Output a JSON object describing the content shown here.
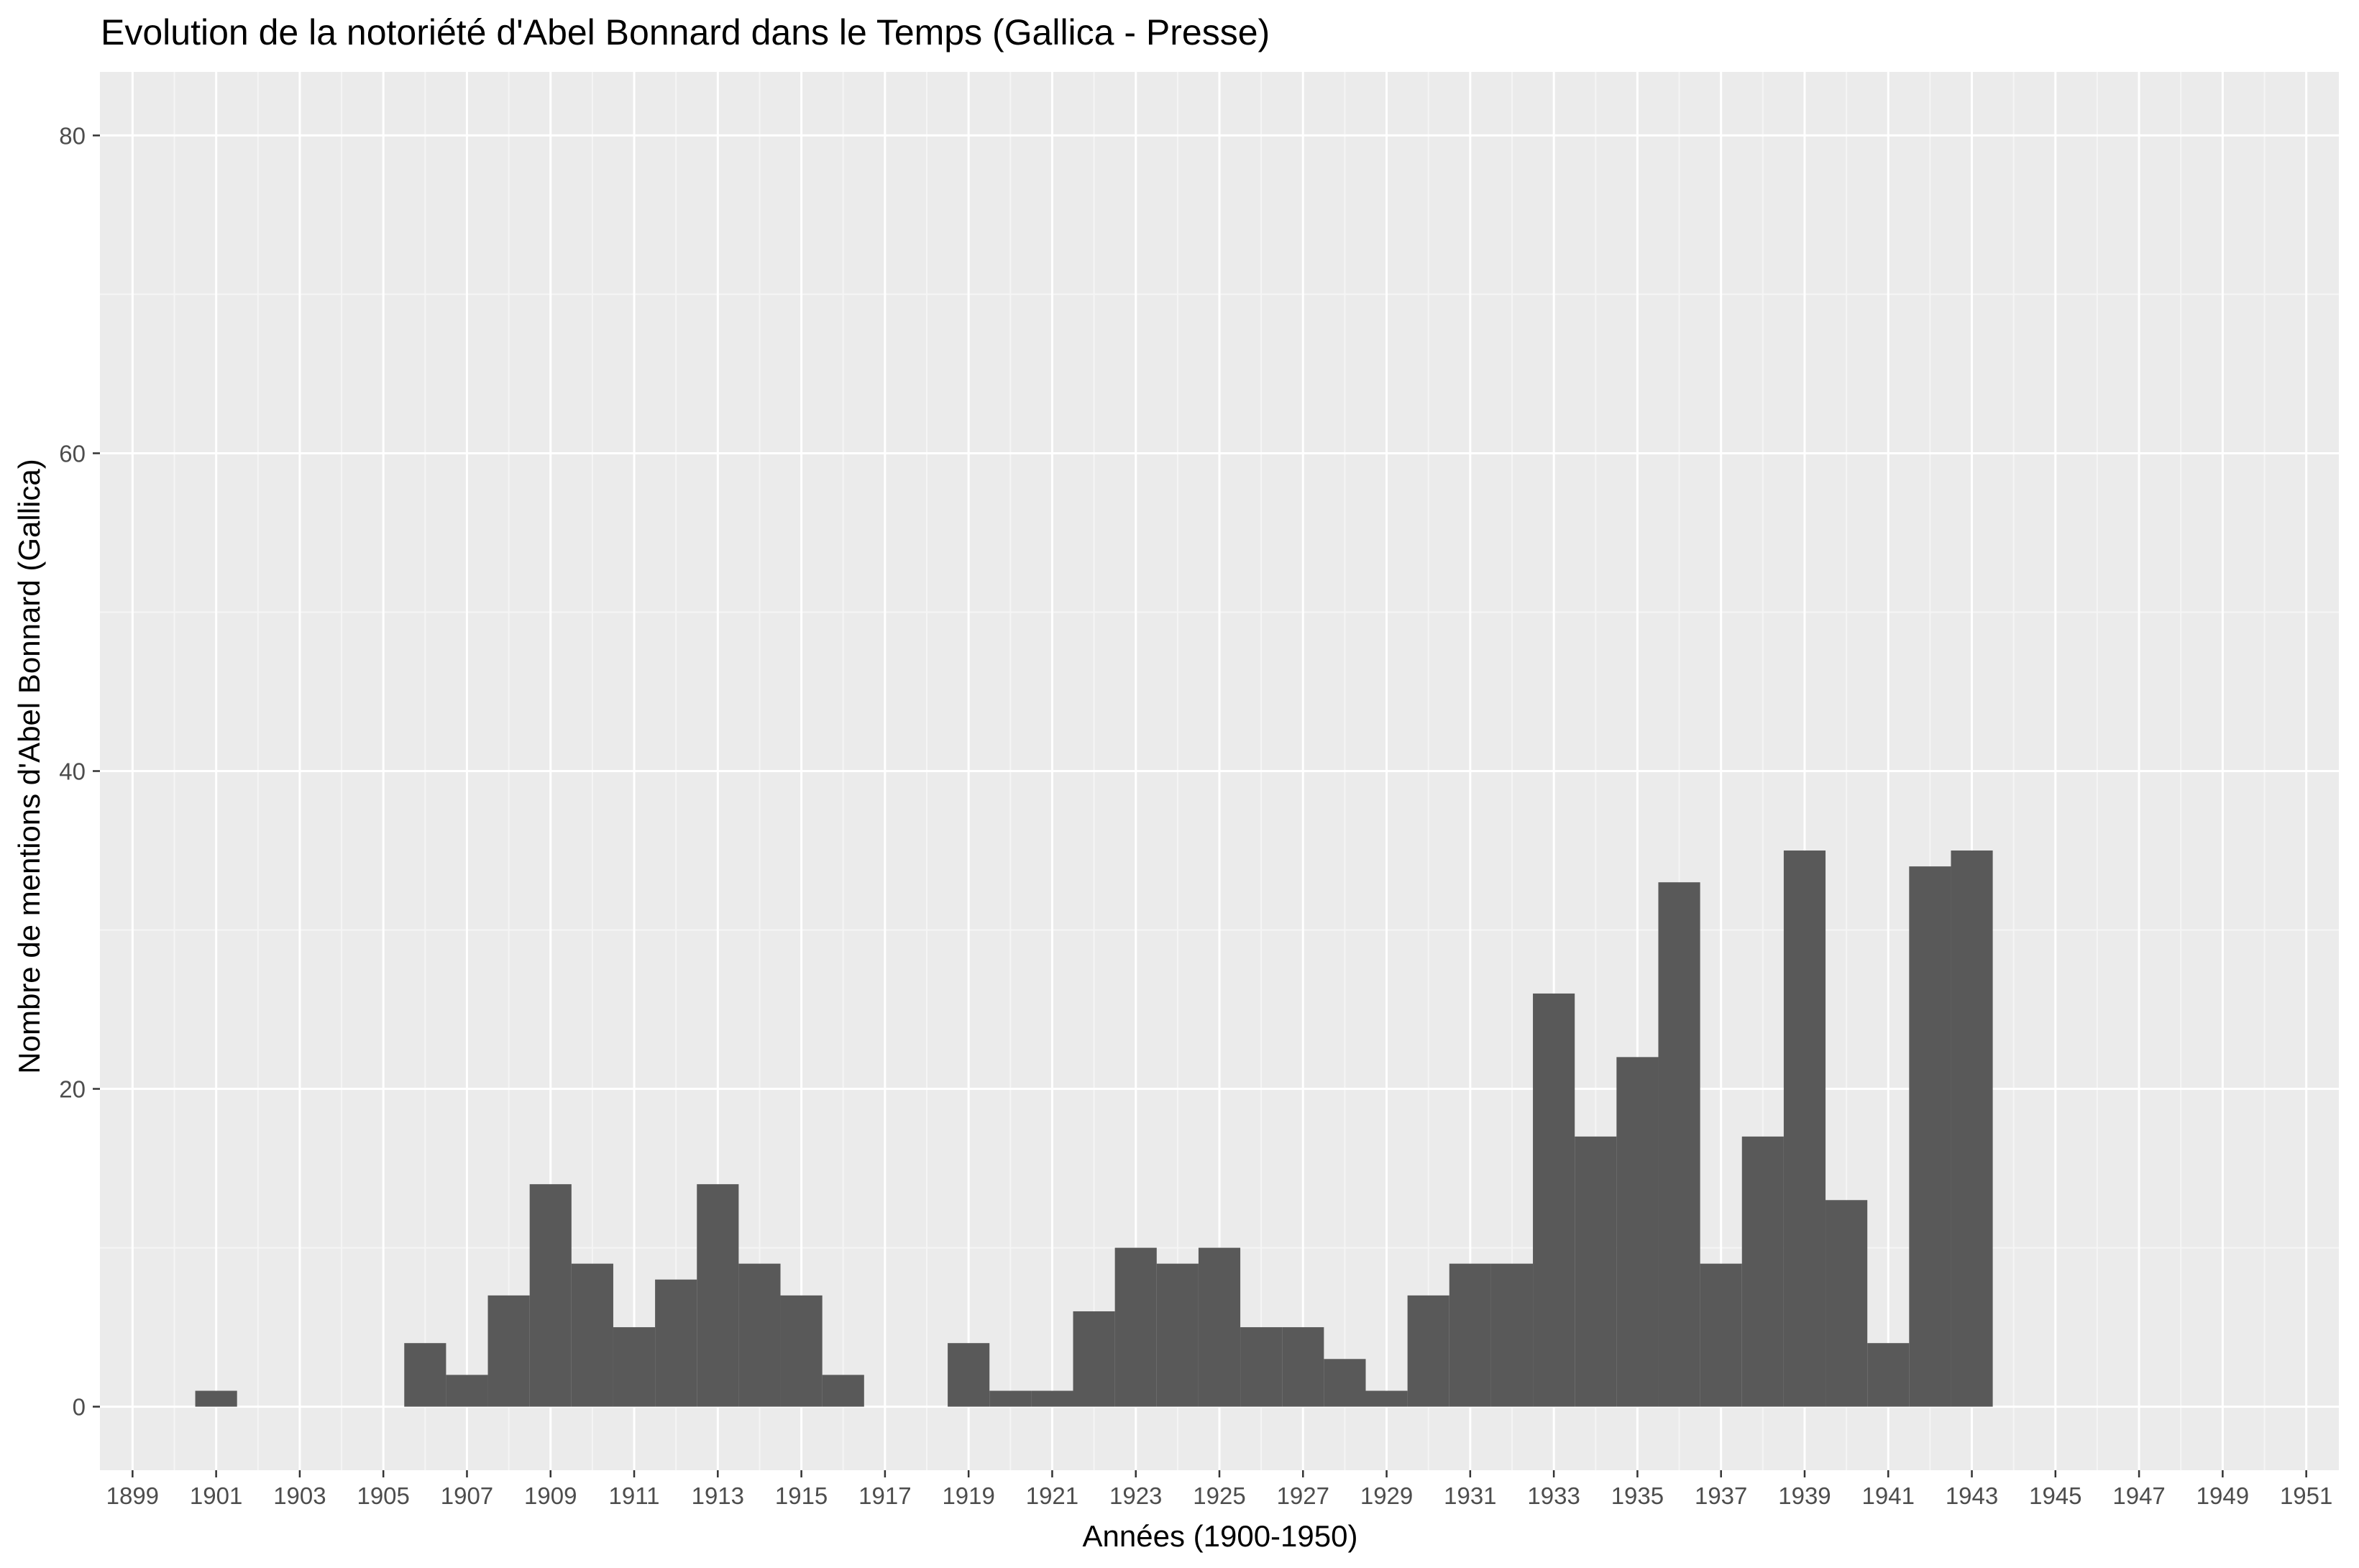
{
  "chart_data": {
    "type": "bar",
    "title": "Evolution de la notoriété d'Abel Bonnard dans le Temps (Gallica - Presse)",
    "xlabel": "Années (1900-1950)",
    "ylabel": "Nombre de mentions d'Abel Bonnard (Gallica)",
    "xlim": [
      1898.22,
      1951.78
    ],
    "ylim": [
      -4,
      84
    ],
    "grid": true,
    "x_ticks": [
      1899,
      1901,
      1903,
      1905,
      1907,
      1909,
      1911,
      1913,
      1915,
      1917,
      1919,
      1921,
      1923,
      1925,
      1927,
      1929,
      1931,
      1933,
      1935,
      1937,
      1939,
      1941,
      1943,
      1945,
      1947,
      1949,
      1951
    ],
    "y_ticks": [
      0,
      20,
      40,
      60,
      80
    ],
    "categories": [
      1901,
      1906,
      1907,
      1908,
      1909,
      1910,
      1911,
      1912,
      1913,
      1914,
      1915,
      1916,
      1919,
      1920,
      1921,
      1922,
      1923,
      1924,
      1925,
      1926,
      1927,
      1928,
      1929,
      1930,
      1931,
      1932,
      1933,
      1934,
      1935,
      1936,
      1937,
      1938,
      1939,
      1940,
      1941,
      1942,
      1943
    ],
    "values": [
      1,
      4,
      2,
      7,
      14,
      9,
      5,
      8,
      14,
      9,
      7,
      2,
      4,
      1,
      1,
      6,
      10,
      9,
      10,
      5,
      5,
      3,
      1,
      7,
      9,
      9,
      26,
      17,
      22,
      33,
      9,
      17,
      35,
      13,
      4,
      34,
      35
    ],
    "colors": {
      "bar": "#595959",
      "panel": "#ebebeb",
      "grid_major": "#ffffff",
      "grid_minor": "#f5f5f5",
      "tick": "#333333"
    }
  }
}
